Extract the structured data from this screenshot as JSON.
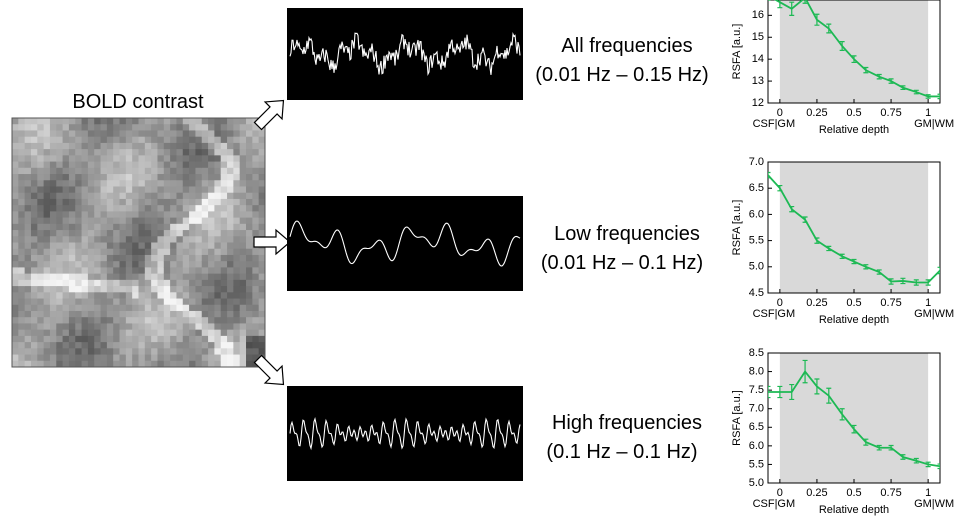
{
  "figure": {
    "bold_label": "BOLD contrast",
    "bands": [
      {
        "name": "All frequencies",
        "range": "(0.01 Hz – 0.15 Hz)"
      },
      {
        "name": "Low frequencies",
        "range": "(0.01 Hz – 0.1 Hz)"
      },
      {
        "name": "High frequencies",
        "range": "(0.1 Hz – 0.1 Hz)"
      }
    ]
  },
  "chart_data": [
    {
      "type": "line",
      "xlabel": "Relative depth",
      "ylabel": "RSFA [a.u.]",
      "boundary_labels": [
        "CSF|GM",
        "GM|WM"
      ],
      "shade": [
        0,
        1
      ],
      "color": "#1db954",
      "x": [
        -0.08,
        0,
        0.08,
        0.17,
        0.25,
        0.33,
        0.42,
        0.5,
        0.58,
        0.67,
        0.75,
        0.83,
        0.92,
        1,
        1.08
      ],
      "values": [
        16.9,
        16.6,
        16.3,
        16.8,
        15.8,
        15.4,
        14.6,
        14.0,
        13.5,
        13.2,
        13.0,
        12.7,
        12.5,
        12.3,
        12.3
      ],
      "errors": [
        0.2,
        0.25,
        0.3,
        0.25,
        0.25,
        0.2,
        0.2,
        0.15,
        0.12,
        0.1,
        0.1,
        0.08,
        0.08,
        0.08,
        0.1
      ],
      "xlim": [
        -0.08,
        1.08
      ],
      "ylim": [
        12,
        16.7
      ],
      "xticks": [
        0,
        0.25,
        0.5,
        0.75,
        1
      ],
      "yticks": [
        12,
        13,
        14,
        15,
        16
      ]
    },
    {
      "type": "line",
      "xlabel": "Relative depth",
      "ylabel": "RSFA [a.u.]",
      "boundary_labels": [
        "CSF|GM",
        "GM|WM"
      ],
      "shade": [
        0,
        1
      ],
      "color": "#1db954",
      "x": [
        -0.08,
        0,
        0.08,
        0.17,
        0.25,
        0.33,
        0.42,
        0.5,
        0.58,
        0.67,
        0.75,
        0.83,
        0.92,
        1,
        1.08
      ],
      "values": [
        6.75,
        6.5,
        6.1,
        5.9,
        5.5,
        5.35,
        5.2,
        5.1,
        5.0,
        4.9,
        4.72,
        4.73,
        4.7,
        4.7,
        4.93
      ],
      "errors": [
        0.05,
        0.05,
        0.05,
        0.05,
        0.05,
        0.04,
        0.04,
        0.04,
        0.04,
        0.04,
        0.05,
        0.05,
        0.05,
        0.05,
        0.06
      ],
      "xlim": [
        -0.08,
        1.08
      ],
      "ylim": [
        4.5,
        7.0
      ],
      "xticks": [
        0,
        0.25,
        0.5,
        0.75,
        1
      ],
      "yticks": [
        4.5,
        {
          "value": 5,
          "label": "5.0"
        },
        5.5,
        {
          "value": 6,
          "label": "6.0"
        },
        6.5,
        {
          "value": 7,
          "label": "7.0"
        }
      ]
    },
    {
      "type": "line",
      "xlabel": "Relative depth",
      "ylabel": "RSFA [a.u.]",
      "boundary_labels": [
        "CSF|GM",
        "GM|WM"
      ],
      "shade": [
        0,
        1
      ],
      "color": "#1db954",
      "x": [
        -0.08,
        0,
        0.08,
        0.17,
        0.25,
        0.33,
        0.42,
        0.5,
        0.58,
        0.67,
        0.75,
        0.83,
        0.92,
        1,
        1.08
      ],
      "values": [
        7.45,
        7.45,
        7.45,
        8.0,
        7.6,
        7.35,
        6.85,
        6.45,
        6.1,
        5.95,
        5.95,
        5.7,
        5.6,
        5.5,
        5.45
      ],
      "errors": [
        0.15,
        0.15,
        0.2,
        0.3,
        0.2,
        0.2,
        0.15,
        0.1,
        0.08,
        0.06,
        0.06,
        0.06,
        0.06,
        0.06,
        0.06
      ],
      "xlim": [
        -0.08,
        1.08
      ],
      "ylim": [
        5,
        8.5
      ],
      "xticks": [
        0,
        0.25,
        0.5,
        0.75,
        1
      ],
      "yticks": [
        {
          "value": 5,
          "label": "5.0"
        },
        5.5,
        {
          "value": 6,
          "label": "6.0"
        },
        6.5,
        {
          "value": 7,
          "label": "7.0"
        },
        7.5,
        {
          "value": 8,
          "label": "8.0"
        },
        8.5
      ]
    }
  ]
}
